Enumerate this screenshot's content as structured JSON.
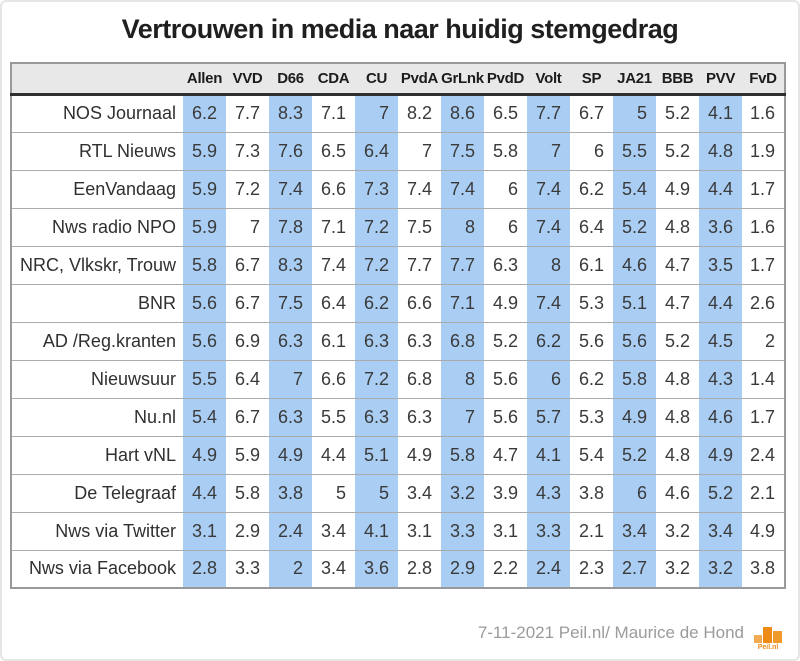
{
  "title": "Vertrouwen in media naar huidig stemgedrag",
  "colors": {
    "highlight_column": "#a9cdf3",
    "header_background": "#e8e8e8",
    "table_border": "#999999",
    "accent_orange": "#ed8b16"
  },
  "footer": {
    "credit": "7-11-2021 Peil.nl/ Maurice de Hond",
    "logo_text": "Peil.nl"
  },
  "chart_data": {
    "type": "table",
    "title": "Vertrouwen in media naar huidig stemgedrag",
    "value_range": [
      1,
      10
    ],
    "columns": [
      "Allen",
      "VVD",
      "D66",
      "CDA",
      "CU",
      "PvdA",
      "GrLnk",
      "PvdD",
      "Volt",
      "SP",
      "JA21",
      "BBB",
      "PVV",
      "FvD"
    ],
    "highlighted_columns": [
      "Allen",
      "D66",
      "CU",
      "GrLnk",
      "Volt",
      "JA21",
      "PVV"
    ],
    "rows": [
      {
        "label": "NOS Journaal",
        "values": [
          6.2,
          7.7,
          8.3,
          7.1,
          7,
          8.2,
          8.6,
          6.5,
          7.7,
          6.7,
          5,
          5.2,
          4.1,
          1.6
        ]
      },
      {
        "label": "RTL Nieuws",
        "values": [
          5.9,
          7.3,
          7.6,
          6.5,
          6.4,
          7,
          7.5,
          5.8,
          7,
          6,
          5.5,
          5.2,
          4.8,
          1.9
        ]
      },
      {
        "label": "EenVandaag",
        "values": [
          5.9,
          7.2,
          7.4,
          6.6,
          7.3,
          7.4,
          7.4,
          6,
          7.4,
          6.2,
          5.4,
          4.9,
          4.4,
          1.7
        ]
      },
      {
        "label": "Nws radio NPO",
        "values": [
          5.9,
          7,
          7.8,
          7.1,
          7.2,
          7.5,
          8,
          6,
          7.4,
          6.4,
          5.2,
          4.8,
          3.6,
          1.6
        ]
      },
      {
        "label": "NRC, Vlkskr, Trouw",
        "values": [
          5.8,
          6.7,
          8.3,
          7.4,
          7.2,
          7.7,
          7.7,
          6.3,
          8,
          6.1,
          4.6,
          4.7,
          3.5,
          1.7
        ]
      },
      {
        "label": "BNR",
        "values": [
          5.6,
          6.7,
          7.5,
          6.4,
          6.2,
          6.6,
          7.1,
          4.9,
          7.4,
          5.3,
          5.1,
          4.7,
          4.4,
          2.6
        ]
      },
      {
        "label": "AD /Reg.kranten",
        "values": [
          5.6,
          6.9,
          6.3,
          6.1,
          6.3,
          6.3,
          6.8,
          5.2,
          6.2,
          5.6,
          5.6,
          5.2,
          4.5,
          2
        ]
      },
      {
        "label": "Nieuwsuur",
        "values": [
          5.5,
          6.4,
          7,
          6.6,
          7.2,
          6.8,
          8,
          5.6,
          6,
          6.2,
          5.8,
          4.8,
          4.3,
          1.4
        ]
      },
      {
        "label": "Nu.nl",
        "values": [
          5.4,
          6.7,
          6.3,
          5.5,
          6.3,
          6.3,
          7,
          5.6,
          5.7,
          5.3,
          4.9,
          4.8,
          4.6,
          1.7
        ]
      },
      {
        "label": "Hart vNL",
        "values": [
          4.9,
          5.9,
          4.9,
          4.4,
          5.1,
          4.9,
          5.8,
          4.7,
          4.1,
          5.4,
          5.2,
          4.8,
          4.9,
          2.4
        ]
      },
      {
        "label": "De Telegraaf",
        "values": [
          4.4,
          5.8,
          3.8,
          5,
          5,
          3.4,
          3.2,
          3.9,
          4.3,
          3.8,
          6,
          4.6,
          5.2,
          2.1
        ]
      },
      {
        "label": "Nws via Twitter",
        "values": [
          3.1,
          2.9,
          2.4,
          3.4,
          4.1,
          3.1,
          3.3,
          3.1,
          3.3,
          2.1,
          3.4,
          3.2,
          3.4,
          4.9
        ]
      },
      {
        "label": "Nws via Facebook",
        "values": [
          2.8,
          3.3,
          2,
          3.4,
          3.6,
          2.8,
          2.9,
          2.2,
          2.4,
          2.3,
          2.7,
          3.2,
          3.2,
          3.8
        ]
      }
    ],
    "source": "7-11-2021 Peil.nl/ Maurice de Hond",
    "legend_position": "none",
    "grid": "row-separators"
  }
}
